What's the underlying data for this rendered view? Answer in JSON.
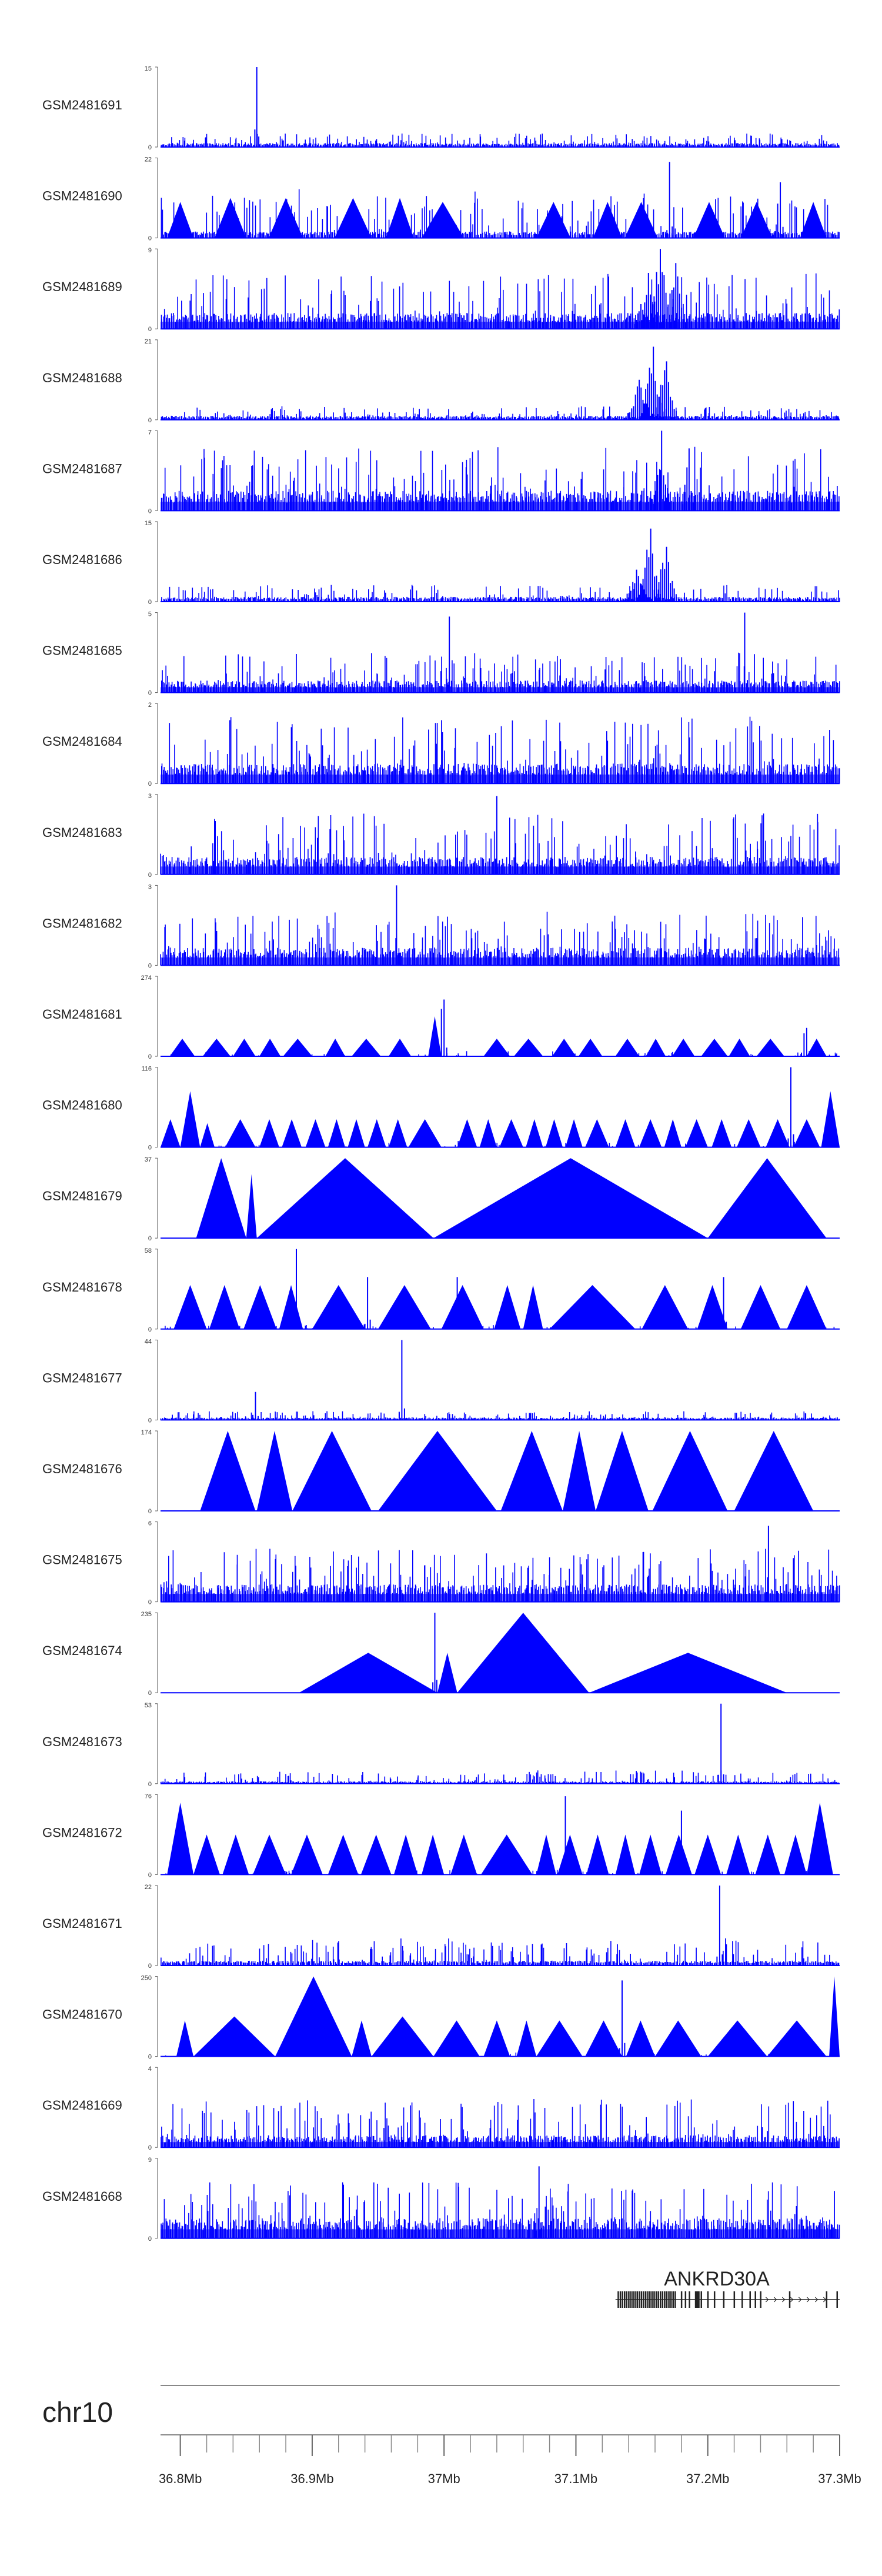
{
  "chart_data": {
    "type": "genome_browser_tracks",
    "title": "",
    "color": "#0000ff",
    "chromosome": "chr10",
    "x_range_mb": [
      36.785,
      37.3
    ],
    "x_ticks": [
      {
        "value": 36.8,
        "label": "36.8Mb"
      },
      {
        "value": 36.9,
        "label": "36.9Mb"
      },
      {
        "value": 37.0,
        "label": "37Mb"
      },
      {
        "value": 37.1,
        "label": "37.1Mb"
      },
      {
        "value": 37.2,
        "label": "37.2Mb"
      },
      {
        "value": 37.3,
        "label": "37.3Mb"
      }
    ],
    "minor_tick_step_mb": 0.02,
    "tracks": [
      {
        "name": "GSM2481691",
        "ymax": "15",
        "ymin": "0",
        "style": "bars",
        "baseline": 0.05,
        "noise": 0.12,
        "peaks": [
          {
            "x": 36.858,
            "h": 1.0,
            "w": 0.0015
          }
        ]
      },
      {
        "name": "GSM2481690",
        "ymax": "22",
        "ymin": "0",
        "style": "mixed",
        "baseline": 0.08,
        "noise": 0.45,
        "tri": [
          [
            36.79,
            36.81,
            0.45
          ],
          [
            36.826,
            36.85,
            0.5
          ],
          [
            36.867,
            36.893,
            0.5
          ],
          [
            36.917,
            36.945,
            0.5
          ],
          [
            36.956,
            36.977,
            0.5
          ],
          [
            36.983,
            37.015,
            0.45
          ],
          [
            37.07,
            37.096,
            0.45
          ],
          [
            37.113,
            37.135,
            0.45
          ],
          [
            37.137,
            37.162,
            0.45
          ],
          [
            37.189,
            37.213,
            0.45
          ],
          [
            37.225,
            37.249,
            0.45
          ],
          [
            37.27,
            37.29,
            0.45
          ]
        ],
        "peaks": [
          {
            "x": 37.254,
            "h": 0.98,
            "w": 0.003
          },
          {
            "x": 37.171,
            "h": 0.95,
            "w": 0.002
          }
        ]
      },
      {
        "name": "GSM2481689",
        "ymax": "9",
        "ymin": "0",
        "style": "bars",
        "baseline": 0.2,
        "noise": 0.5,
        "peaks": [
          {
            "x": 37.164,
            "h": 1.0,
            "w": 0.01
          },
          {
            "x": 37.175,
            "h": 0.9,
            "w": 0.008
          },
          {
            "x": 37.155,
            "h": 0.7,
            "w": 0.01
          }
        ]
      },
      {
        "name": "GSM2481688",
        "ymax": "21",
        "ymin": "0",
        "style": "bars",
        "baseline": 0.05,
        "noise": 0.12,
        "peaks": [
          {
            "x": 37.158,
            "h": 1.0,
            "w": 0.008
          },
          {
            "x": 37.168,
            "h": 0.8,
            "w": 0.008
          },
          {
            "x": 37.148,
            "h": 0.5,
            "w": 0.01
          }
        ]
      },
      {
        "name": "GSM2481687",
        "ymax": "7",
        "ymin": "0",
        "style": "bars",
        "baseline": 0.25,
        "noise": 0.55,
        "peaks": [
          {
            "x": 37.165,
            "h": 1.0,
            "w": 0.006
          },
          {
            "x": 37.185,
            "h": 0.95,
            "w": 0.004
          }
        ]
      },
      {
        "name": "GSM2481686",
        "ymax": "15",
        "ymin": "0",
        "style": "bars",
        "baseline": 0.06,
        "noise": 0.15,
        "peaks": [
          {
            "x": 37.156,
            "h": 1.0,
            "w": 0.008
          },
          {
            "x": 37.168,
            "h": 0.75,
            "w": 0.008
          },
          {
            "x": 37.146,
            "h": 0.4,
            "w": 0.01
          }
        ]
      },
      {
        "name": "GSM2481685",
        "ymax": "5",
        "ymin": "0",
        "style": "bars",
        "baseline": 0.15,
        "noise": 0.35,
        "peaks": [
          {
            "x": 37.004,
            "h": 0.95,
            "w": 0.002
          },
          {
            "x": 37.228,
            "h": 1.0,
            "w": 0.002
          }
        ]
      },
      {
        "name": "GSM2481684",
        "ymax": "2",
        "ymin": "0",
        "style": "bars",
        "baseline": 0.25,
        "noise": 0.6,
        "peaks": []
      },
      {
        "name": "GSM2481683",
        "ymax": "3",
        "ymin": "0",
        "style": "bars",
        "baseline": 0.22,
        "noise": 0.55,
        "peaks": [
          {
            "x": 37.04,
            "h": 0.98,
            "w": 0.002
          }
        ]
      },
      {
        "name": "GSM2481682",
        "ymax": "3",
        "ymin": "0",
        "style": "bars",
        "baseline": 0.22,
        "noise": 0.45,
        "peaks": [
          {
            "x": 36.964,
            "h": 1.0,
            "w": 0.002
          }
        ]
      },
      {
        "name": "GSM2481681",
        "ymax": "274",
        "ymin": "0",
        "style": "mixed",
        "baseline": 0.0,
        "noise": 0.05,
        "tri": [
          [
            36.792,
            36.811,
            0.22
          ],
          [
            36.817,
            36.838,
            0.22
          ],
          [
            36.84,
            36.857,
            0.22
          ],
          [
            36.86,
            36.876,
            0.22
          ],
          [
            36.878,
            36.9,
            0.22
          ],
          [
            36.91,
            36.925,
            0.22
          ],
          [
            36.93,
            36.952,
            0.22
          ],
          [
            36.958,
            36.975,
            0.22
          ],
          [
            36.988,
            36.998,
            0.5
          ],
          [
            37.03,
            37.05,
            0.22
          ],
          [
            37.053,
            37.075,
            0.22
          ],
          [
            37.082,
            37.1,
            0.22
          ],
          [
            37.102,
            37.12,
            0.22
          ],
          [
            37.13,
            37.148,
            0.22
          ],
          [
            37.153,
            37.168,
            0.22
          ],
          [
            37.173,
            37.19,
            0.22
          ],
          [
            37.195,
            37.215,
            0.22
          ],
          [
            37.216,
            37.232,
            0.22
          ],
          [
            37.237,
            37.258,
            0.22
          ],
          [
            37.275,
            37.29,
            0.22
          ]
        ],
        "peaks": [
          {
            "x": 36.999,
            "h": 1.0,
            "w": 0.003
          },
          {
            "x": 37.274,
            "h": 0.5,
            "w": 0.003
          }
        ]
      },
      {
        "name": "GSM2481680",
        "ymax": "116",
        "ymin": "0",
        "style": "mixed",
        "baseline": 0.0,
        "noise": 0.06,
        "tri": [
          [
            36.785,
            36.8,
            0.35
          ],
          [
            36.8,
            36.815,
            0.7
          ],
          [
            36.815,
            36.826,
            0.3
          ],
          [
            36.834,
            36.857,
            0.35
          ],
          [
            36.86,
            36.875,
            0.35
          ],
          [
            36.877,
            36.892,
            0.35
          ],
          [
            36.895,
            36.91,
            0.35
          ],
          [
            36.912,
            36.925,
            0.35
          ],
          [
            36.927,
            36.94,
            0.35
          ],
          [
            36.942,
            36.956,
            0.35
          ],
          [
            36.958,
            36.972,
            0.35
          ],
          [
            36.973,
            36.998,
            0.35
          ],
          [
            37.01,
            37.025,
            0.35
          ],
          [
            37.027,
            37.04,
            0.35
          ],
          [
            37.042,
            37.06,
            0.35
          ],
          [
            37.062,
            37.075,
            0.35
          ],
          [
            37.077,
            37.09,
            0.35
          ],
          [
            37.092,
            37.105,
            0.35
          ],
          [
            37.107,
            37.125,
            0.35
          ],
          [
            37.13,
            37.145,
            0.35
          ],
          [
            37.148,
            37.165,
            0.35
          ],
          [
            37.167,
            37.18,
            0.35
          ],
          [
            37.183,
            37.2,
            0.35
          ],
          [
            37.203,
            37.218,
            0.35
          ],
          [
            37.222,
            37.24,
            0.35
          ],
          [
            37.244,
            37.262,
            0.35
          ],
          [
            37.265,
            37.285,
            0.35
          ],
          [
            37.286,
            37.3,
            0.7
          ]
        ],
        "peaks": [
          {
            "x": 37.263,
            "h": 1.0,
            "w": 0.002
          }
        ]
      },
      {
        "name": "GSM2481679",
        "ymax": "37",
        "ymin": "0",
        "style": "tri",
        "baseline": 0.0,
        "noise": 0.0,
        "tri": [
          [
            36.812,
            36.85,
            1.0
          ],
          [
            36.85,
            36.858,
            0.8
          ],
          [
            36.858,
            36.992,
            1.0
          ],
          [
            36.992,
            37.2,
            1.0
          ],
          [
            37.2,
            37.29,
            1.0
          ]
        ],
        "peaks": []
      },
      {
        "name": "GSM2481678",
        "ymax": "58",
        "ymin": "0",
        "style": "mixed",
        "baseline": 0.0,
        "noise": 0.05,
        "tri": [
          [
            36.795,
            36.82,
            0.55
          ],
          [
            36.822,
            36.845,
            0.55
          ],
          [
            36.848,
            36.873,
            0.55
          ],
          [
            36.875,
            36.893,
            0.55
          ],
          [
            36.9,
            36.94,
            0.55
          ],
          [
            36.95,
            36.99,
            0.55
          ],
          [
            36.998,
            37.03,
            0.55
          ],
          [
            37.038,
            37.058,
            0.55
          ],
          [
            37.06,
            37.075,
            0.55
          ],
          [
            37.08,
            37.145,
            0.55
          ],
          [
            37.15,
            37.185,
            0.55
          ],
          [
            37.192,
            37.215,
            0.55
          ],
          [
            37.225,
            37.255,
            0.55
          ],
          [
            37.26,
            37.29,
            0.55
          ]
        ],
        "peaks": [
          {
            "x": 36.888,
            "h": 1.0,
            "w": 0.002
          },
          {
            "x": 36.942,
            "h": 0.65,
            "w": 0.002
          },
          {
            "x": 37.01,
            "h": 0.65,
            "w": 0.002
          },
          {
            "x": 37.212,
            "h": 0.65,
            "w": 0.002
          }
        ]
      },
      {
        "name": "GSM2481677",
        "ymax": "44",
        "ymin": "0",
        "style": "bars",
        "baseline": 0.03,
        "noise": 0.08,
        "peaks": [
          {
            "x": 36.968,
            "h": 1.0,
            "w": 0.002
          },
          {
            "x": 36.857,
            "h": 0.35,
            "w": 0.002
          }
        ]
      },
      {
        "name": "GSM2481676",
        "ymax": "174",
        "ymin": "0",
        "style": "tri",
        "baseline": 0.0,
        "noise": 0.0,
        "tri": [
          [
            36.815,
            36.857,
            1.0
          ],
          [
            36.858,
            36.885,
            1.0
          ],
          [
            36.885,
            36.945,
            1.0
          ],
          [
            36.95,
            37.04,
            1.0
          ],
          [
            37.043,
            37.09,
            1.0
          ],
          [
            37.09,
            37.115,
            1.0
          ],
          [
            37.115,
            37.155,
            1.0
          ],
          [
            37.158,
            37.215,
            1.0
          ],
          [
            37.22,
            37.28,
            1.0
          ]
        ],
        "peaks": []
      },
      {
        "name": "GSM2481675",
        "ymax": "6",
        "ymin": "0",
        "style": "bars",
        "baseline": 0.22,
        "noise": 0.45,
        "peaks": [
          {
            "x": 37.246,
            "h": 0.95,
            "w": 0.002
          }
        ]
      },
      {
        "name": "GSM2481674",
        "ymax": "235",
        "ymin": "0",
        "style": "tri",
        "baseline": 0.0,
        "noise": 0.0,
        "tri": [
          [
            36.89,
            36.995,
            0.5
          ],
          [
            36.995,
            37.01,
            0.5
          ],
          [
            37.01,
            37.11,
            1.0
          ],
          [
            37.11,
            37.26,
            0.5
          ]
        ],
        "peaks": [
          {
            "x": 36.993,
            "h": 1.0,
            "w": 0.0015
          }
        ]
      },
      {
        "name": "GSM2481673",
        "ymax": "53",
        "ymin": "0",
        "style": "bars",
        "baseline": 0.03,
        "noise": 0.12,
        "peaks": [
          {
            "x": 37.21,
            "h": 1.0,
            "w": 0.002
          }
        ]
      },
      {
        "name": "GSM2481672",
        "ymax": "76",
        "ymin": "0",
        "style": "mixed",
        "baseline": 0.0,
        "noise": 0.06,
        "tri": [
          [
            36.79,
            36.81,
            0.9
          ],
          [
            36.81,
            36.83,
            0.5
          ],
          [
            36.832,
            36.852,
            0.5
          ],
          [
            36.855,
            36.88,
            0.5
          ],
          [
            36.884,
            36.908,
            0.5
          ],
          [
            36.912,
            36.935,
            0.5
          ],
          [
            36.937,
            36.96,
            0.5
          ],
          [
            36.962,
            36.98,
            0.5
          ],
          [
            36.983,
            37.0,
            0.5
          ],
          [
            37.005,
            37.025,
            0.5
          ],
          [
            37.028,
            37.067,
            0.5
          ],
          [
            37.07,
            37.085,
            0.5
          ],
          [
            37.086,
            37.105,
            0.5
          ],
          [
            37.108,
            37.125,
            0.5
          ],
          [
            37.13,
            37.145,
            0.5
          ],
          [
            37.148,
            37.165,
            0.5
          ],
          [
            37.168,
            37.188,
            0.5
          ],
          [
            37.19,
            37.21,
            0.5
          ],
          [
            37.214,
            37.232,
            0.5
          ],
          [
            37.236,
            37.255,
            0.5
          ],
          [
            37.258,
            37.275,
            0.5
          ],
          [
            37.275,
            37.295,
            0.9
          ]
        ],
        "peaks": [
          {
            "x": 37.092,
            "h": 0.98,
            "w": 0.002
          },
          {
            "x": 37.18,
            "h": 0.8,
            "w": 0.002
          }
        ]
      },
      {
        "name": "GSM2481671",
        "ymax": "22",
        "ymin": "0",
        "style": "bars",
        "baseline": 0.06,
        "noise": 0.25,
        "peaks": [
          {
            "x": 37.209,
            "h": 1.0,
            "w": 0.002
          }
        ]
      },
      {
        "name": "GSM2481670",
        "ymax": "250",
        "ymin": "0",
        "style": "mixed",
        "baseline": 0.0,
        "noise": 0.04,
        "tri": [
          [
            36.797,
            36.81,
            0.45
          ],
          [
            36.81,
            36.872,
            0.5
          ],
          [
            36.872,
            36.93,
            1.0
          ],
          [
            36.93,
            36.945,
            0.45
          ],
          [
            36.945,
            36.992,
            0.5
          ],
          [
            36.992,
            37.027,
            0.45
          ],
          [
            37.03,
            37.05,
            0.45
          ],
          [
            37.055,
            37.07,
            0.45
          ],
          [
            37.07,
            37.105,
            0.45
          ],
          [
            37.107,
            37.135,
            0.45
          ],
          [
            37.138,
            37.16,
            0.45
          ],
          [
            37.16,
            37.195,
            0.45
          ],
          [
            37.2,
            37.245,
            0.45
          ],
          [
            37.245,
            37.29,
            0.45
          ],
          [
            37.292,
            37.3,
            1.0
          ]
        ],
        "peaks": [
          {
            "x": 37.135,
            "h": 0.95,
            "w": 0.002
          }
        ]
      },
      {
        "name": "GSM2481669",
        "ymax": "4",
        "ymin": "0",
        "style": "bars",
        "baseline": 0.15,
        "noise": 0.45,
        "peaks": []
      },
      {
        "name": "GSM2481668",
        "ymax": "9",
        "ymin": "0",
        "style": "bars",
        "baseline": 0.25,
        "noise": 0.45,
        "peaks": [
          {
            "x": 37.072,
            "h": 0.9,
            "w": 0.002
          }
        ]
      }
    ],
    "gene": {
      "name": "ANKRD30A",
      "start_mb": 37.13,
      "end_mb": 37.3,
      "strand": "+"
    }
  }
}
